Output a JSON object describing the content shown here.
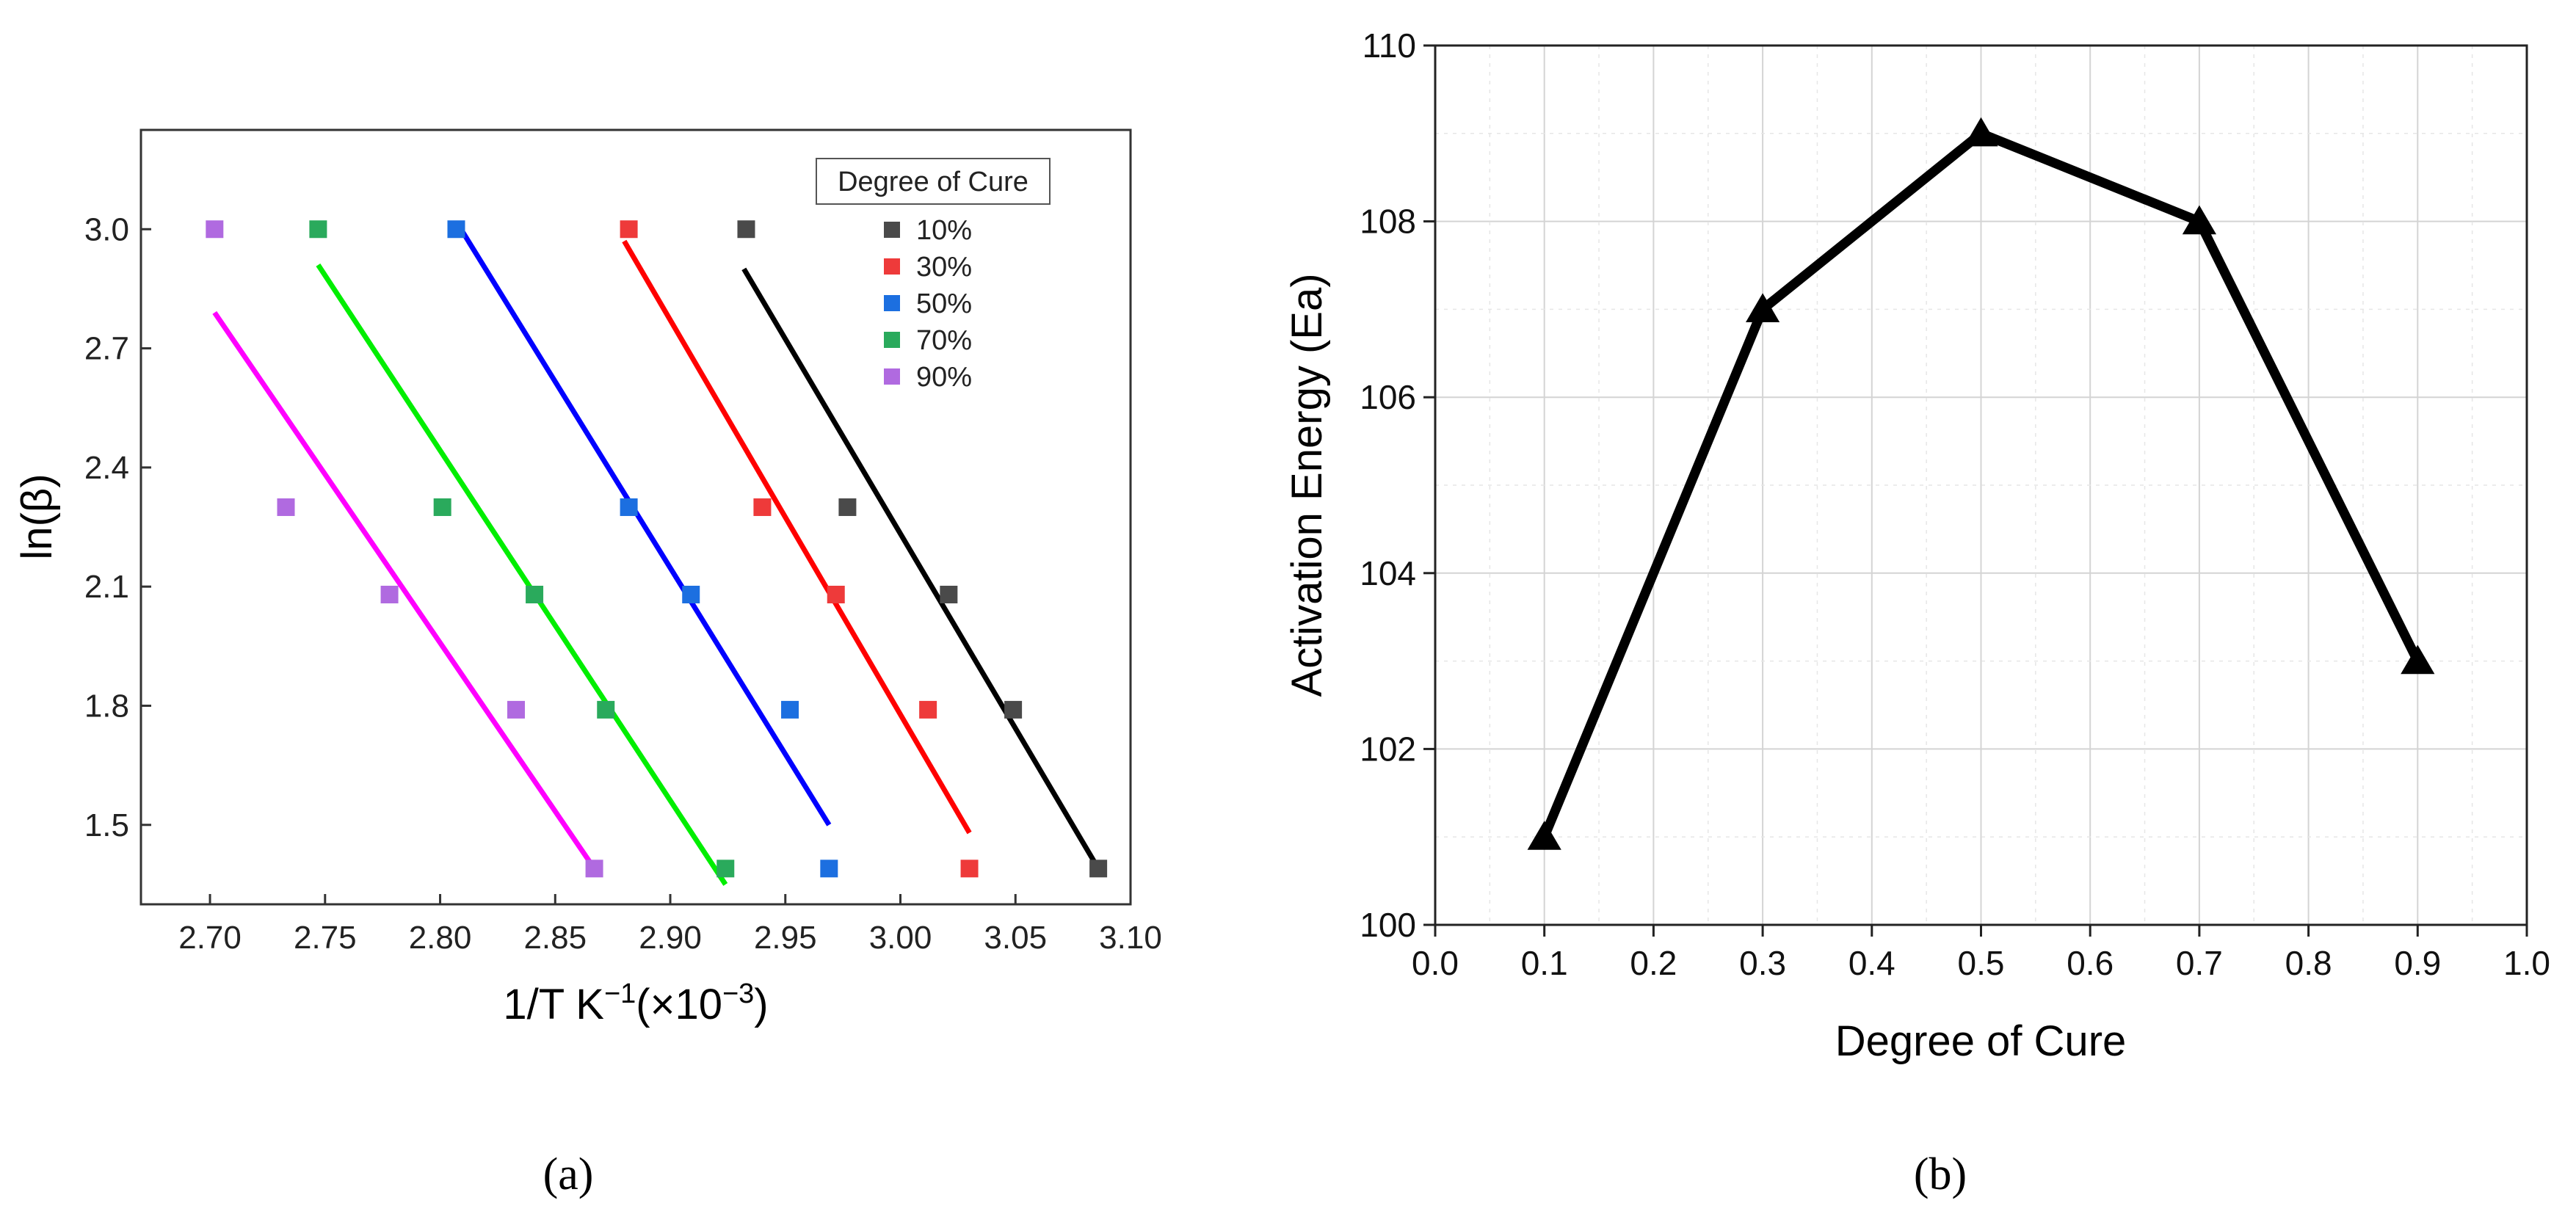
{
  "chart_data": [
    {
      "type": "scatter",
      "panel_label": "(a)",
      "xlabel": "1/T K",
      "xlabel_sup": "−1",
      "xlabel_suffix": "(×10",
      "xlabel_suffix_sup": "−3",
      "xlabel_end": ")",
      "ylabel": "ln(β)",
      "xlim": [
        2.67,
        3.1
      ],
      "ylim": [
        1.3,
        3.25
      ],
      "xticks": [
        2.7,
        2.75,
        2.8,
        2.85,
        2.9,
        2.95,
        3.0,
        3.05,
        3.1
      ],
      "xtick_labels": [
        "2.70",
        "2.75",
        "2.80",
        "2.85",
        "2.90",
        "2.95",
        "3.00",
        "3.05",
        "3.10"
      ],
      "yticks": [
        1.5,
        1.8,
        2.1,
        2.4,
        2.7,
        3.0
      ],
      "ytick_labels": [
        "1.5",
        "1.8",
        "2.1",
        "2.4",
        "2.7",
        "3.0"
      ],
      "legend_title": "Degree of Cure",
      "series": [
        {
          "name": "10%",
          "marker_color": "#4a4a4a",
          "line_color": "#000000",
          "points": [
            [
              2.933,
              3.0
            ],
            [
              2.977,
              2.3
            ],
            [
              3.021,
              2.08
            ],
            [
              3.049,
              1.79
            ],
            [
              3.086,
              1.39
            ]
          ],
          "fit": [
            [
              2.932,
              2.9
            ],
            [
              3.086,
              1.39
            ]
          ]
        },
        {
          "name": "30%",
          "marker_color": "#ee3a3a",
          "line_color": "#ff0000",
          "points": [
            [
              2.882,
              3.0
            ],
            [
              2.94,
              2.3
            ],
            [
              2.972,
              2.08
            ],
            [
              3.012,
              1.79
            ],
            [
              3.03,
              1.39
            ]
          ],
          "fit": [
            [
              2.88,
              2.97
            ],
            [
              3.03,
              1.48
            ]
          ]
        },
        {
          "name": "50%",
          "marker_color": "#1c6fe0",
          "line_color": "#0000ff",
          "points": [
            [
              2.807,
              3.0
            ],
            [
              2.882,
              2.3
            ],
            [
              2.909,
              2.08
            ],
            [
              2.952,
              1.79
            ],
            [
              2.969,
              1.39
            ]
          ],
          "fit": [
            [
              2.808,
              3.01
            ],
            [
              2.969,
              1.5
            ]
          ]
        },
        {
          "name": "70%",
          "marker_color": "#2aaa5c",
          "line_color": "#00ee00",
          "points": [
            [
              2.747,
              3.0
            ],
            [
              2.801,
              2.3
            ],
            [
              2.841,
              2.08
            ],
            [
              2.872,
              1.79
            ],
            [
              2.924,
              1.39
            ]
          ],
          "fit": [
            [
              2.747,
              2.91
            ],
            [
              2.924,
              1.35
            ]
          ]
        },
        {
          "name": "90%",
          "marker_color": "#b06ae0",
          "line_color": "#ff00ff",
          "points": [
            [
              2.702,
              3.0
            ],
            [
              2.733,
              2.3
            ],
            [
              2.778,
              2.08
            ],
            [
              2.833,
              1.79
            ],
            [
              2.867,
              1.39
            ]
          ],
          "fit": [
            [
              2.702,
              2.79
            ],
            [
              2.867,
              1.39
            ]
          ]
        }
      ]
    },
    {
      "type": "line",
      "panel_label": "(b)",
      "xlabel": "Degree of Cure",
      "ylabel": "Activation Energy (Ea)",
      "xlim": [
        0.0,
        1.0
      ],
      "ylim": [
        100,
        110
      ],
      "xticks": [
        0.0,
        0.1,
        0.2,
        0.3,
        0.4,
        0.5,
        0.6,
        0.7,
        0.8,
        0.9,
        1.0
      ],
      "xtick_labels": [
        "0.0",
        "0.1",
        "0.2",
        "0.3",
        "0.4",
        "0.5",
        "0.6",
        "0.7",
        "0.8",
        "0.9",
        "1.0"
      ],
      "yticks": [
        100,
        102,
        104,
        106,
        108,
        110
      ],
      "ytick_labels": [
        "100",
        "102",
        "104",
        "106",
        "108",
        "110"
      ],
      "grid": true,
      "series": [
        {
          "name": "Ea",
          "color": "#000000",
          "x": [
            0.1,
            0.3,
            0.5,
            0.7,
            0.9
          ],
          "y": [
            101,
            107,
            109,
            108,
            103
          ]
        }
      ]
    }
  ]
}
